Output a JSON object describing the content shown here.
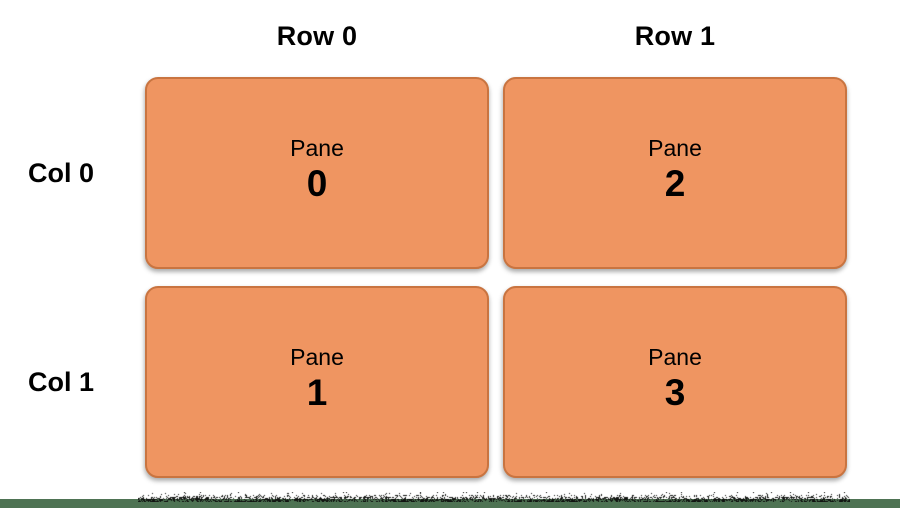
{
  "headers": {
    "rows": [
      {
        "label": "Row 0"
      },
      {
        "label": "Row 1"
      }
    ],
    "cols": [
      {
        "label": "Col 0"
      },
      {
        "label": "Col 1"
      }
    ]
  },
  "panes": [
    {
      "title": "Pane",
      "number": "0",
      "position": "top-left"
    },
    {
      "title": "Pane",
      "number": "1",
      "position": "bottom-left"
    },
    {
      "title": "Pane",
      "number": "2",
      "position": "top-right"
    },
    {
      "title": "Pane",
      "number": "3",
      "position": "bottom-right"
    }
  ],
  "colors": {
    "pane_fill": "#ef9561",
    "pane_border": "#c97440",
    "bottom_bar": "#4e7353",
    "noise": "#121512",
    "text": "#000000",
    "bg": "#ffffff"
  }
}
